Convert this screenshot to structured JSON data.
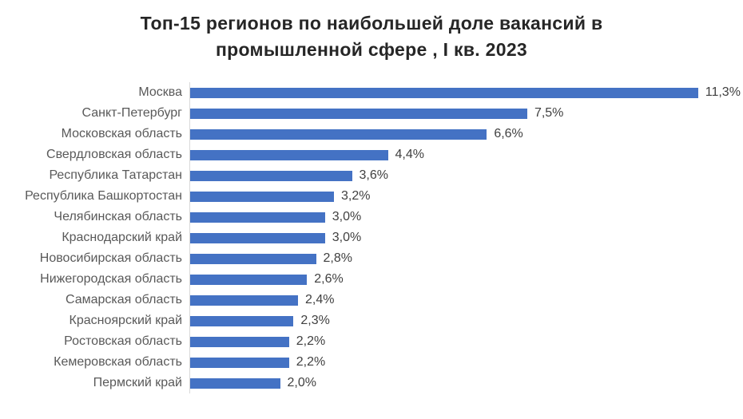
{
  "page": {
    "background": "#ffffff"
  },
  "chart_data": {
    "type": "bar",
    "orientation": "horizontal",
    "title": "Топ-15 регионов по наибольшей доле вакансий в промышленной сфере , I кв. 2023",
    "title_lines": [
      "Топ-15 регионов по наибольшей доле вакансий в",
      "промышленной сфере , I кв. 2023"
    ],
    "categories": [
      "Москва",
      "Санкт-Петербург",
      "Московская область",
      "Свердловская область",
      "Республика Татарстан",
      "Республика Башкортостан",
      "Челябинская область",
      "Краснодарский край",
      "Новосибирская область",
      "Нижегородская область",
      "Самарская область",
      "Красноярский край",
      "Ростовская область",
      "Кемеровская область",
      "Пермский край"
    ],
    "values": [
      11.3,
      7.5,
      6.6,
      4.4,
      3.6,
      3.2,
      3.0,
      3.0,
      2.8,
      2.6,
      2.4,
      2.3,
      2.2,
      2.2,
      2.0
    ],
    "value_labels": [
      "11,3%",
      "7,5%",
      "6,6%",
      "4,4%",
      "3,6%",
      "3,2%",
      "3,0%",
      "3,0%",
      "2,8%",
      "2,6%",
      "2,4%",
      "2,3%",
      "2,2%",
      "2,2%",
      "2,0%"
    ],
    "xlabel": "",
    "ylabel": "",
    "xlim": [
      0,
      12.3
    ],
    "grid": false,
    "legend": "none",
    "value_label_position": "end-of-bar",
    "bar_color": "#4472C4",
    "axis_line_color": "#d9d9d9"
  },
  "colors": {
    "title": "#262626",
    "category_label": "#595959",
    "value_label": "#404040",
    "background": "#ffffff"
  }
}
